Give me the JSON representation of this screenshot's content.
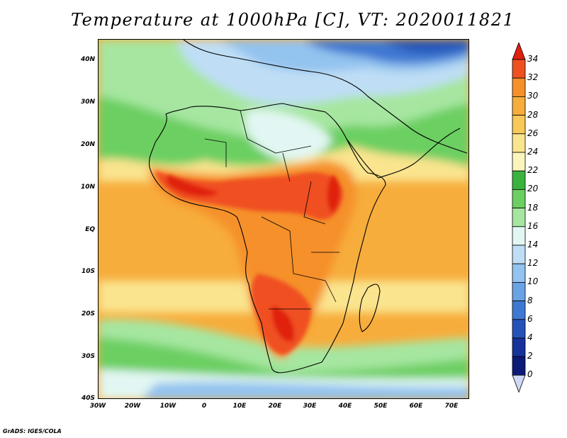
{
  "title": "Temperature at 1000hPa [C], VT: 2020011821",
  "credit": "GrADS: IGES/COLA",
  "axes": {
    "lat_labels": [
      "40N",
      "30N",
      "20N",
      "10N",
      "EQ",
      "10S",
      "20S",
      "30S",
      "40S"
    ],
    "lon_labels": [
      "30W",
      "20W",
      "10W",
      "0",
      "10E",
      "20E",
      "30E",
      "40E",
      "50E",
      "60E",
      "70E"
    ]
  },
  "colorbar": {
    "levels": [
      "34",
      "32",
      "30",
      "28",
      "26",
      "24",
      "22",
      "20",
      "18",
      "16",
      "14",
      "12",
      "10",
      "8",
      "6",
      "4",
      "2",
      "0"
    ],
    "colors": [
      "#e02010",
      "#f05020",
      "#f5902a",
      "#f7ad3c",
      "#f8c858",
      "#fae48e",
      "#fbf5bc",
      "#3ab33e",
      "#6ccf62",
      "#a6e6a0",
      "#e2f7f3",
      "#bfdef5",
      "#93c3ef",
      "#6aa3e4",
      "#3f78d2",
      "#2452b8",
      "#17329a",
      "#0d1a7a",
      "#cfd8f7"
    ]
  }
}
